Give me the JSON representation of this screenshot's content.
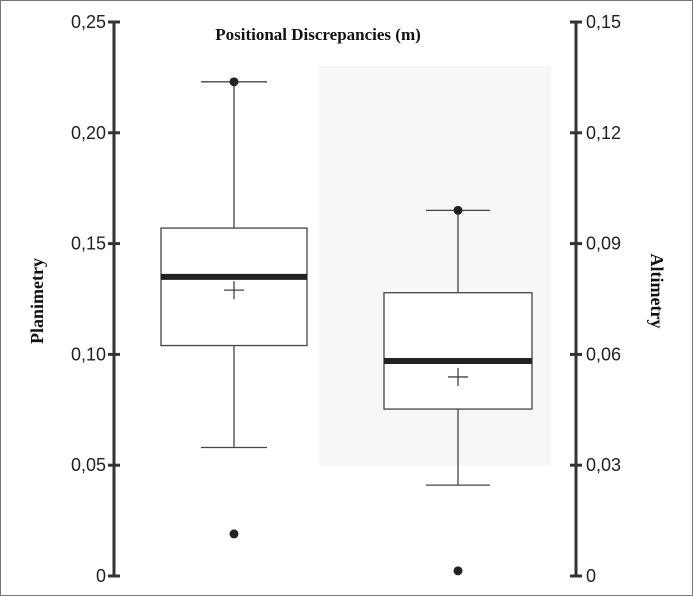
{
  "chart_data": {
    "type": "boxplot",
    "title": "Positional Discrepancies (m)",
    "ylabel_left": "Planimetry",
    "ylabel_right": "Altimetry",
    "left_axis": {
      "ylim": [
        0,
        0.25
      ],
      "ticks": [
        0,
        0.05,
        0.1,
        0.15,
        0.2,
        0.25
      ],
      "tick_labels": [
        "0",
        "0,05",
        "0,10",
        "0,15",
        "0,20",
        "0,25"
      ]
    },
    "right_axis": {
      "ylim": [
        0,
        0.15
      ],
      "ticks": [
        0,
        0.03,
        0.06,
        0.09,
        0.12,
        0.15
      ],
      "tick_labels": [
        "0",
        "0,03",
        "0,06",
        "0,09",
        "0,12",
        "0,15"
      ]
    },
    "series": [
      {
        "name": "Planimetry",
        "axis": "left",
        "whisker_low": 0.058,
        "q1": 0.104,
        "median": 0.135,
        "mean": 0.129,
        "q3": 0.157,
        "whisker_high": 0.223,
        "outliers": [
          0.223,
          0.019
        ]
      },
      {
        "name": "Altimetry",
        "axis": "right",
        "whisker_low": 0.0246,
        "q1": 0.0452,
        "median": 0.0582,
        "mean": 0.0539,
        "q3": 0.0767,
        "whisker_high": 0.099,
        "outliers": [
          0.099,
          0.0014
        ]
      }
    ],
    "grid": false
  }
}
